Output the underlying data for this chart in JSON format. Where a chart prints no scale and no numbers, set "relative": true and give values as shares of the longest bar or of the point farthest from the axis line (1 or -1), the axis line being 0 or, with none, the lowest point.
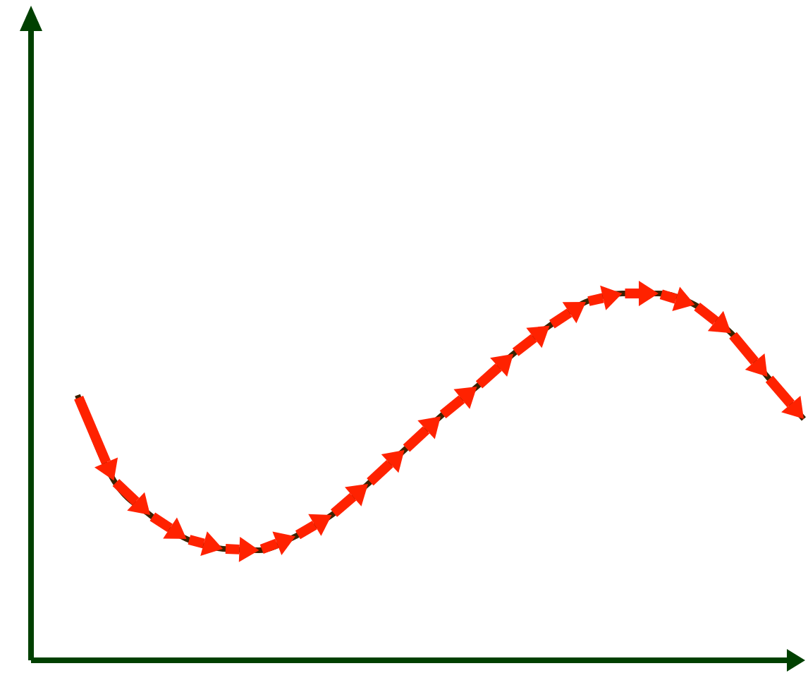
{
  "chart_data": {
    "type": "line",
    "relative": true,
    "marker": "none",
    "line_style": "solid",
    "categories": [
      null,
      null,
      null,
      null,
      null,
      null,
      null,
      null,
      null,
      null,
      null,
      null,
      null,
      null,
      null,
      null,
      null,
      null,
      null,
      null,
      null
    ],
    "series": [
      {
        "color": "#3a2200",
        "values": [
          0.723,
          0.49,
          0.396,
          0.331,
          0.304,
          0.3,
          0.338,
          0.396,
          0.481,
          0.573,
          0.665,
          0.746,
          0.835,
          0.912,
          0.977,
          1,
          1,
          0.969,
          0.892,
          0.773,
          0.658
        ]
      }
    ]
  }
}
